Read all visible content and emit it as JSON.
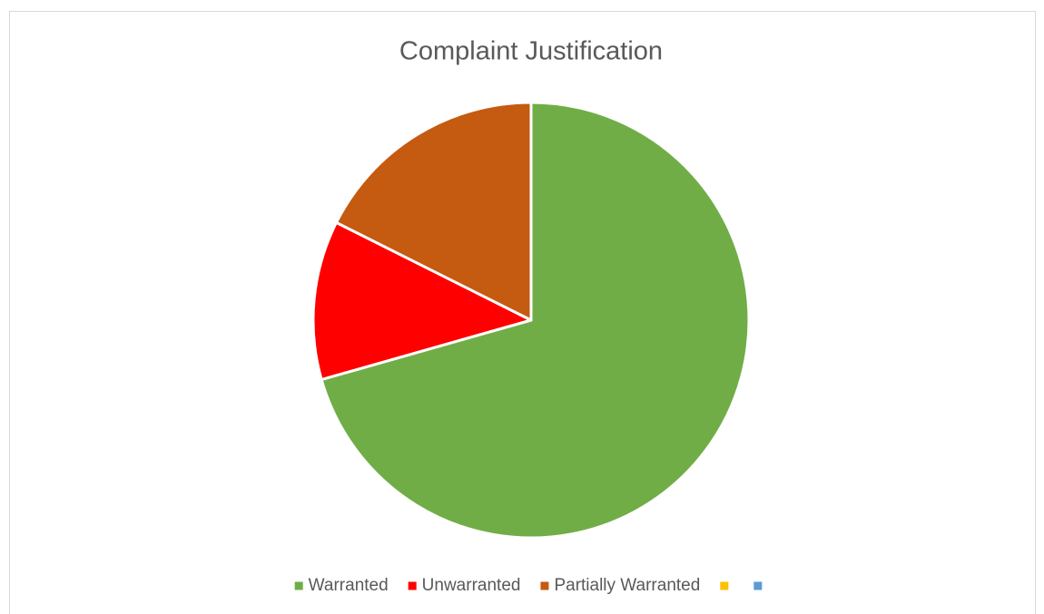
{
  "chart_data": {
    "type": "pie",
    "title": "Complaint Justification",
    "categories": [
      "Warranted",
      "Unwarranted",
      "Partially Warranted",
      null,
      null
    ],
    "values": [
      70.6,
      11.8,
      17.6,
      0,
      0
    ],
    "colors": [
      "#70ad47",
      "#ff0000",
      "#c55a11",
      "#ffc000",
      "#5b9bd5"
    ],
    "legend": "bottom"
  }
}
